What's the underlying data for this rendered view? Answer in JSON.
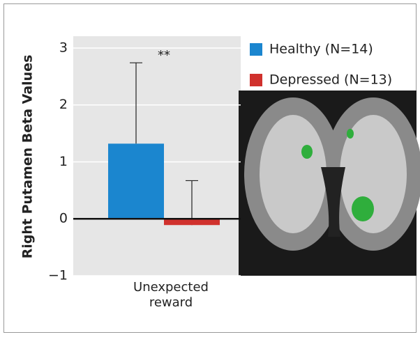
{
  "chart_data": {
    "type": "bar",
    "y_label": "Right Putamen Beta Values",
    "categories": [
      "Unexpected reward"
    ],
    "series": [
      {
        "name": "Healthy (N=14)",
        "color": "#1b86cf",
        "values": [
          1.32
        ],
        "errors": [
          1.42
        ]
      },
      {
        "name": "Depressed (N=13)",
        "color": "#d0312d",
        "values": [
          -0.11
        ],
        "errors": [
          0.78
        ]
      }
    ],
    "annotations": [
      "**"
    ],
    "ylim": [
      -1,
      3.2
    ],
    "yticks": [
      {
        "value": -1,
        "label": "−1"
      },
      0,
      1,
      2,
      3
    ],
    "grid": true
  }
}
